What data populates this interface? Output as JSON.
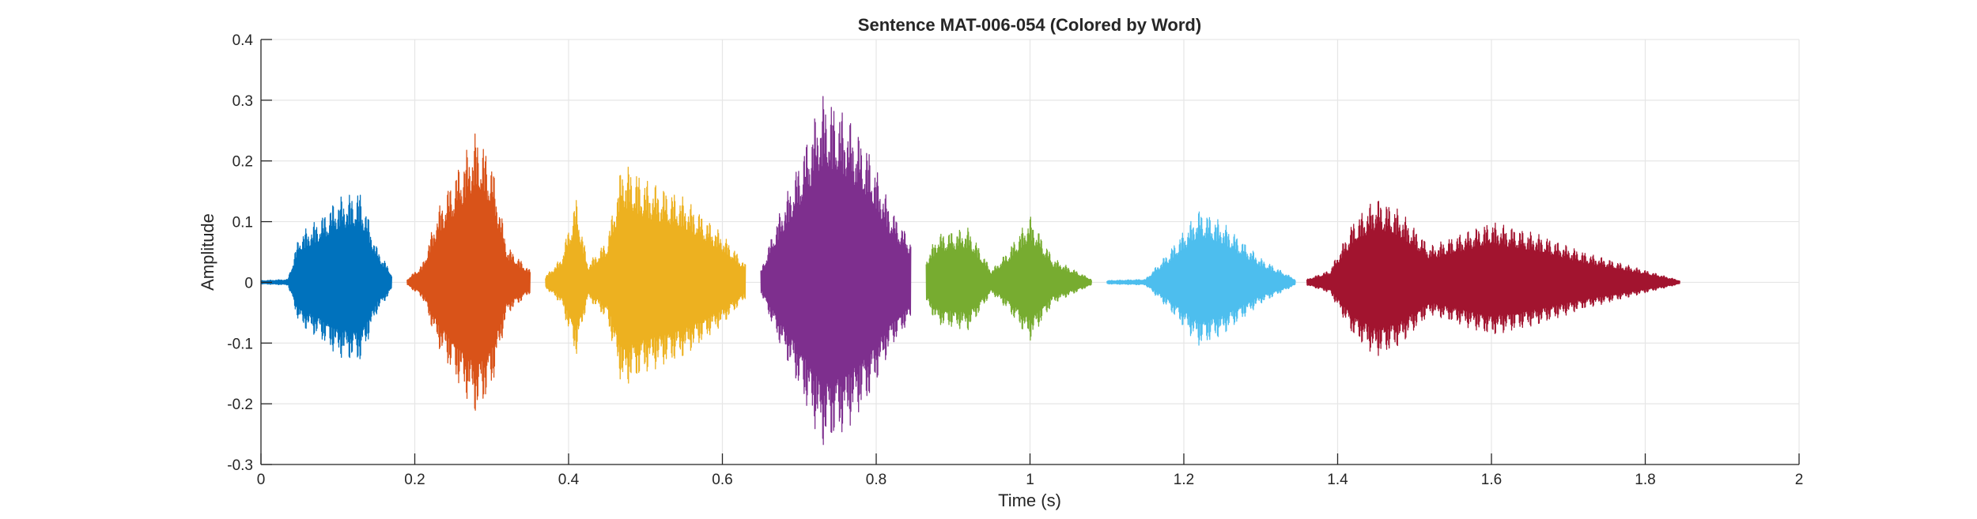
{
  "chart_data": {
    "type": "line",
    "title": "Sentence MAT-006-054 (Colored by Word)",
    "xlabel": "Time (s)",
    "ylabel": "Amplitude",
    "xlim": [
      0,
      2
    ],
    "ylim": [
      -0.3,
      0.4
    ],
    "xticks": [
      0,
      0.2,
      0.4,
      0.6,
      0.8,
      1,
      1.2,
      1.4,
      1.6,
      1.8,
      2
    ],
    "xtick_labels": [
      "0",
      "0.2",
      "0.4",
      "0.6",
      "0.8",
      "1",
      "1.2",
      "1.4",
      "1.6",
      "1.8",
      "2"
    ],
    "yticks": [
      -0.3,
      -0.2,
      -0.1,
      0,
      0.1,
      0.2,
      0.3,
      0.4
    ],
    "ytick_labels": [
      "-0.3",
      "-0.2",
      "-0.1",
      "0",
      "0.1",
      "0.2",
      "0.3",
      "0.4"
    ],
    "grid": true,
    "legend": "none",
    "segments": [
      {
        "start": 0.0,
        "end": 0.17,
        "color": "#0072BD",
        "env": [
          [
            0.0,
            0.003
          ],
          [
            0.035,
            0.005
          ],
          [
            0.05,
            0.08
          ],
          [
            0.08,
            0.11
          ],
          [
            0.1,
            0.14
          ],
          [
            0.13,
            0.15
          ],
          [
            0.15,
            0.06
          ],
          [
            0.17,
            0.015
          ]
        ]
      },
      {
        "start": 0.19,
        "end": 0.35,
        "color": "#D95319",
        "env": [
          [
            0.19,
            0.005
          ],
          [
            0.21,
            0.03
          ],
          [
            0.23,
            0.12
          ],
          [
            0.26,
            0.2
          ],
          [
            0.28,
            0.25
          ],
          [
            0.3,
            0.2
          ],
          [
            0.32,
            0.06
          ],
          [
            0.35,
            0.02
          ]
        ]
      },
      {
        "start": 0.37,
        "end": 0.63,
        "color": "#EDB120",
        "env": [
          [
            0.37,
            0.01
          ],
          [
            0.39,
            0.04
          ],
          [
            0.41,
            0.14
          ],
          [
            0.425,
            0.03
          ],
          [
            0.45,
            0.07
          ],
          [
            0.47,
            0.2
          ],
          [
            0.5,
            0.17
          ],
          [
            0.55,
            0.14
          ],
          [
            0.6,
            0.08
          ],
          [
            0.63,
            0.03
          ]
        ]
      },
      {
        "start": 0.65,
        "end": 0.845,
        "color": "#7E2F8E",
        "env": [
          [
            0.65,
            0.02
          ],
          [
            0.67,
            0.1
          ],
          [
            0.7,
            0.2
          ],
          [
            0.73,
            0.31
          ],
          [
            0.76,
            0.28
          ],
          [
            0.79,
            0.22
          ],
          [
            0.82,
            0.12
          ],
          [
            0.845,
            0.07
          ]
        ]
      },
      {
        "start": 0.865,
        "end": 1.08,
        "color": "#77AC30",
        "env": [
          [
            0.865,
            0.04
          ],
          [
            0.88,
            0.08
          ],
          [
            0.92,
            0.09
          ],
          [
            0.95,
            0.02
          ],
          [
            0.97,
            0.05
          ],
          [
            1.0,
            0.11
          ],
          [
            1.03,
            0.04
          ],
          [
            1.08,
            0.005
          ]
        ]
      },
      {
        "start": 1.1,
        "end": 1.345,
        "color": "#4DBEEE",
        "env": [
          [
            1.1,
            0.003
          ],
          [
            1.15,
            0.005
          ],
          [
            1.18,
            0.05
          ],
          [
            1.22,
            0.12
          ],
          [
            1.25,
            0.1
          ],
          [
            1.3,
            0.04
          ],
          [
            1.345,
            0.005
          ]
        ]
      },
      {
        "start": 1.36,
        "end": 1.845,
        "color": "#A2142F",
        "env": [
          [
            1.36,
            0.005
          ],
          [
            1.39,
            0.02
          ],
          [
            1.42,
            0.1
          ],
          [
            1.45,
            0.14
          ],
          [
            1.48,
            0.12
          ],
          [
            1.52,
            0.06
          ],
          [
            1.56,
            0.08
          ],
          [
            1.6,
            0.1
          ],
          [
            1.66,
            0.08
          ],
          [
            1.72,
            0.05
          ],
          [
            1.8,
            0.02
          ],
          [
            1.845,
            0.003
          ]
        ]
      }
    ]
  }
}
